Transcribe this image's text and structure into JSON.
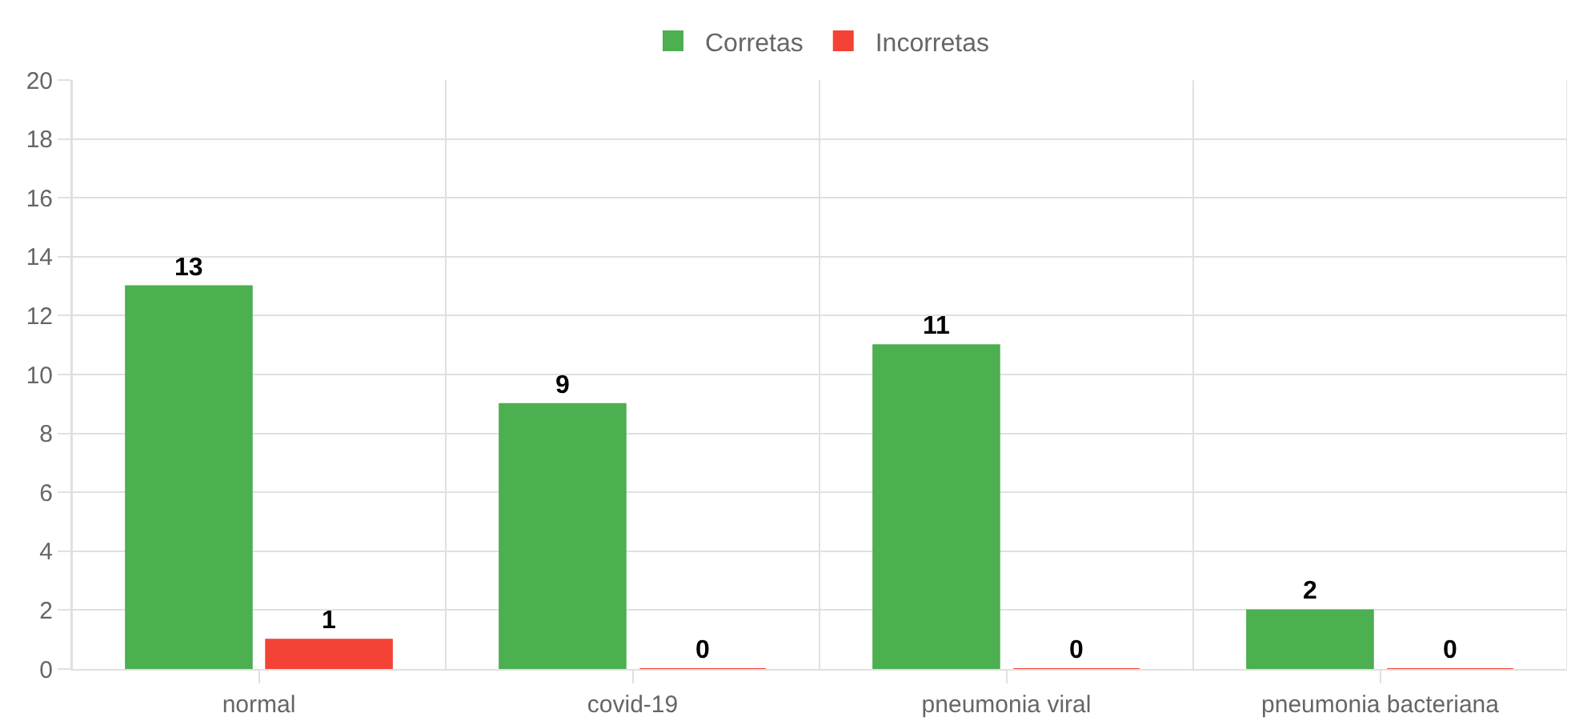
{
  "chart_data": {
    "type": "bar",
    "categories": [
      "normal",
      "covid-19",
      "pneumonia viral",
      "pneumonia bacteriana"
    ],
    "series": [
      {
        "name": "Corretas",
        "color": "#4caf50",
        "values": [
          13,
          9,
          11,
          2
        ]
      },
      {
        "name": "Incorretas",
        "color": "#f44336",
        "values": [
          1,
          0,
          0,
          0
        ]
      }
    ],
    "ylim": [
      0,
      20
    ],
    "yticks": [
      0,
      2,
      4,
      6,
      8,
      10,
      12,
      14,
      16,
      18,
      20
    ],
    "grid": true,
    "legend": "top",
    "data_labels": true
  }
}
